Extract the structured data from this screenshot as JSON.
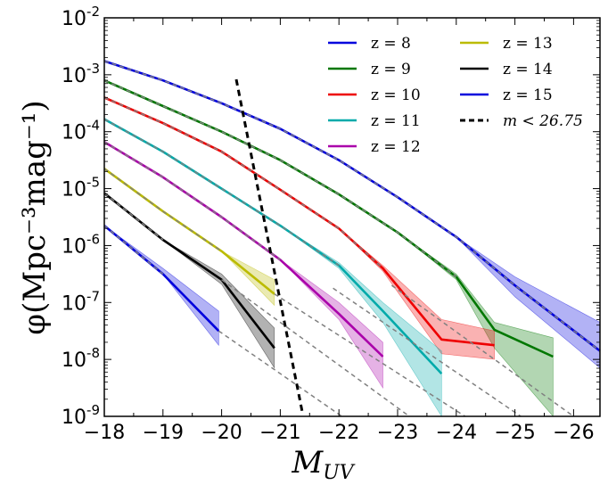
{
  "chart_data": {
    "type": "line",
    "title": "",
    "xlabel": "M",
    "xlabel_sub": "UV",
    "ylabel": "φ(Mpc⁻³mag⁻¹)",
    "yscale": "log",
    "xlim": [
      -18,
      -26.45
    ],
    "ylim_exp": [
      -9,
      -2
    ],
    "grid": false,
    "legend_position": "top-right",
    "x_ticks": [
      "−18",
      "−19",
      "−20",
      "−21",
      "−22",
      "−23",
      "−24",
      "−25",
      "−26"
    ],
    "y_ticks": [
      {
        "base": "10",
        "exp": "-9"
      },
      {
        "base": "10",
        "exp": "-8"
      },
      {
        "base": "10",
        "exp": "-7"
      },
      {
        "base": "10",
        "exp": "-6"
      },
      {
        "base": "10",
        "exp": "-5"
      },
      {
        "base": "10",
        "exp": "-4"
      },
      {
        "base": "10",
        "exp": "-3"
      },
      {
        "base": "10",
        "exp": "-2"
      }
    ],
    "series": [
      {
        "name": "z = 8",
        "color": "#0000dd",
        "x": [
          -18,
          -19,
          -20,
          -21,
          -22,
          -23,
          -24,
          -25,
          -26.45
        ],
        "logy": [
          -2.76,
          -3.1,
          -3.5,
          -3.95,
          -4.5,
          -5.15,
          -5.85,
          -6.7,
          -7.85
        ],
        "band_lo": [
          -2.76,
          -3.1,
          -3.5,
          -3.95,
          -4.5,
          -5.15,
          -5.85,
          -6.9,
          -8.15
        ],
        "band_hi": [
          -2.76,
          -3.1,
          -3.5,
          -3.95,
          -4.5,
          -5.15,
          -5.85,
          -6.55,
          -7.35
        ]
      },
      {
        "name": "z = 9",
        "color": "#007700",
        "x": [
          -18,
          -19,
          -20,
          -21,
          -22,
          -23,
          -24,
          -24.65,
          -25.65
        ],
        "logy": [
          -3.1,
          -3.55,
          -4.0,
          -4.5,
          -5.1,
          -5.77,
          -6.55,
          -7.48,
          -7.95
        ],
        "band_lo": [
          -3.1,
          -3.55,
          -4.0,
          -4.5,
          -5.1,
          -5.77,
          -6.6,
          -7.8,
          -9.0
        ],
        "band_hi": [
          -3.1,
          -3.55,
          -4.0,
          -4.5,
          -5.1,
          -5.77,
          -6.5,
          -7.35,
          -7.62
        ]
      },
      {
        "name": "z = 10",
        "color": "#ee0000",
        "x": [
          -18,
          -19,
          -20,
          -21,
          -22,
          -22.75,
          -23.75,
          -24.65
        ],
        "logy": [
          -3.4,
          -3.85,
          -4.35,
          -5.02,
          -5.7,
          -6.4,
          -7.65,
          -7.75
        ],
        "band_lo": [
          -3.4,
          -3.85,
          -4.35,
          -5.02,
          -5.7,
          -6.45,
          -7.9,
          -8.0
        ],
        "band_hi": [
          -3.4,
          -3.85,
          -4.35,
          -5.02,
          -5.7,
          -6.35,
          -7.3,
          -7.5
        ]
      },
      {
        "name": "z = 11",
        "color": "#00aaaa",
        "x": [
          -18,
          -19,
          -20,
          -21,
          -22,
          -22.75,
          -23.75
        ],
        "logy": [
          -3.78,
          -4.35,
          -5.0,
          -5.65,
          -6.35,
          -7.15,
          -8.25
        ],
        "band_lo": [
          -3.78,
          -4.35,
          -5.0,
          -5.65,
          -6.4,
          -7.35,
          -9.0
        ],
        "band_hi": [
          -3.78,
          -4.35,
          -5.0,
          -5.65,
          -6.3,
          -7.0,
          -7.85
        ]
      },
      {
        "name": "z = 12",
        "color": "#aa00aa",
        "x": [
          -18,
          -19,
          -20,
          -21,
          -22,
          -22.75
        ],
        "logy": [
          -4.18,
          -4.8,
          -5.5,
          -6.25,
          -7.2,
          -7.95
        ],
        "band_lo": [
          -4.18,
          -4.8,
          -5.5,
          -6.25,
          -7.3,
          -8.5
        ],
        "band_hi": [
          -4.18,
          -4.8,
          -5.5,
          -6.25,
          -7.0,
          -7.7
        ]
      },
      {
        "name": "z = 13",
        "color": "#bbbb00",
        "x": [
          -18,
          -19,
          -20,
          -20.9
        ],
        "logy": [
          -4.65,
          -5.4,
          -6.1,
          -6.85
        ],
        "band_lo": [
          -4.65,
          -5.4,
          -6.1,
          -7.05
        ],
        "band_hi": [
          -4.65,
          -5.4,
          -6.1,
          -6.6
        ]
      },
      {
        "name": "z = 14",
        "color": "#000000",
        "x": [
          -18,
          -19,
          -20,
          -20.9
        ],
        "logy": [
          -5.08,
          -5.9,
          -6.6,
          -7.8
        ],
        "band_lo": [
          -5.08,
          -5.9,
          -6.68,
          -8.15
        ],
        "band_hi": [
          -5.08,
          -5.9,
          -6.5,
          -7.45
        ]
      },
      {
        "name": "z = 15",
        "color": "#0000dd",
        "x": [
          -18,
          -19,
          -19.95
        ],
        "logy": [
          -5.65,
          -6.5,
          -7.5
        ],
        "band_lo": [
          -5.65,
          -6.5,
          -7.75
        ],
        "band_hi": [
          -5.65,
          -6.4,
          -7.15
        ]
      }
    ],
    "dashed_fits": [
      {
        "x": [
          -18,
          -19,
          -20,
          -21,
          -22,
          -23,
          -24,
          -25,
          -26.45
        ],
        "logy": [
          -2.76,
          -3.1,
          -3.5,
          -3.95,
          -4.5,
          -5.15,
          -5.85,
          -6.7,
          -7.85
        ]
      },
      {
        "x": [
          -18,
          -19,
          -20,
          -21,
          -22,
          -23,
          -24
        ],
        "logy": [
          -3.1,
          -3.55,
          -4.0,
          -4.5,
          -5.1,
          -5.77,
          -6.55
        ]
      },
      {
        "x": [
          -18,
          -19,
          -20,
          -21,
          -22,
          -22.75
        ],
        "logy": [
          -3.4,
          -3.85,
          -4.35,
          -5.02,
          -5.7,
          -6.4
        ]
      },
      {
        "x": [
          -18,
          -19,
          -20,
          -21,
          -22
        ],
        "logy": [
          -3.78,
          -4.35,
          -5.0,
          -5.65,
          -6.35
        ]
      },
      {
        "x": [
          -18,
          -19,
          -20,
          -21
        ],
        "logy": [
          -4.18,
          -4.8,
          -5.5,
          -6.25
        ]
      },
      {
        "x": [
          -18,
          -19,
          -20
        ],
        "logy": [
          -4.65,
          -5.4,
          -6.1
        ]
      },
      {
        "x": [
          -18,
          -19
        ],
        "logy": [
          -5.08,
          -5.9
        ]
      },
      {
        "x": [
          -18,
          -19
        ],
        "logy": [
          -5.65,
          -6.5
        ]
      },
      {
        "x": [
          -22.9,
          -26.0
        ],
        "logy": [
          -6.7,
          -9.0
        ]
      },
      {
        "x": [
          -21.9,
          -25.1
        ],
        "logy": [
          -6.75,
          -9.0
        ]
      },
      {
        "x": [
          -20.9,
          -24.15
        ],
        "logy": [
          -6.85,
          -9.0
        ]
      },
      {
        "x": [
          -20.0,
          -23.2
        ],
        "logy": [
          -6.6,
          -9.0
        ]
      },
      {
        "x": [
          -19.95,
          -22.05
        ],
        "logy": [
          -7.5,
          -9.0
        ]
      }
    ],
    "magnitude_limit": {
      "name": "m < 26.75",
      "x": [
        -20.25,
        -21.38
      ],
      "logy": [
        -3.08,
        -8.95
      ]
    }
  }
}
